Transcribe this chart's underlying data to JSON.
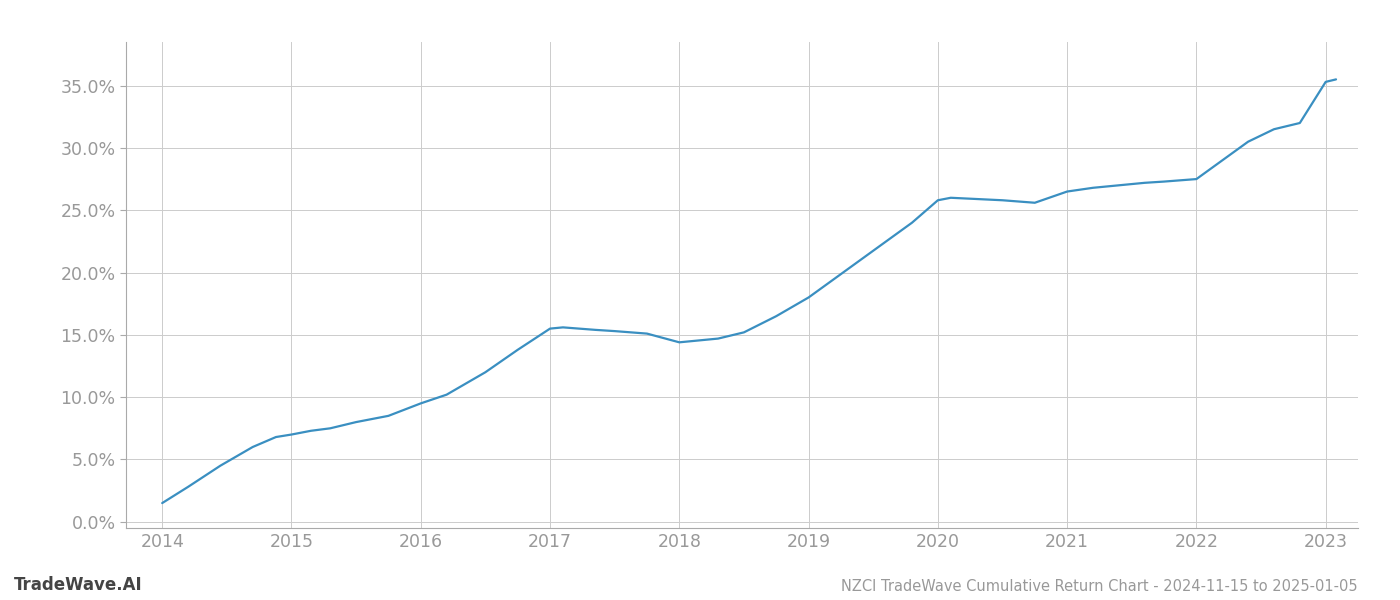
{
  "title": "NZCI TradeWave Cumulative Return Chart - 2024-11-15 to 2025-01-05",
  "watermark": "TradeWave.AI",
  "line_color": "#3a8fc1",
  "background_color": "#ffffff",
  "grid_color": "#cccccc",
  "x_values": [
    2014.0,
    2014.2,
    2014.45,
    2014.7,
    2014.88,
    2015.0,
    2015.15,
    2015.3,
    2015.5,
    2015.75,
    2016.0,
    2016.2,
    2016.5,
    2016.75,
    2017.0,
    2017.1,
    2017.35,
    2017.5,
    2017.75,
    2018.0,
    2018.1,
    2018.3,
    2018.5,
    2018.75,
    2019.0,
    2019.2,
    2019.4,
    2019.6,
    2019.8,
    2020.0,
    2020.1,
    2020.3,
    2020.5,
    2020.75,
    2021.0,
    2021.2,
    2021.4,
    2021.6,
    2021.75,
    2022.0,
    2022.2,
    2022.4,
    2022.6,
    2022.8,
    2023.0,
    2023.08
  ],
  "y_values": [
    1.5,
    2.8,
    4.5,
    6.0,
    6.8,
    7.0,
    7.3,
    7.5,
    8.0,
    8.5,
    9.5,
    10.2,
    12.0,
    13.8,
    15.5,
    15.6,
    15.4,
    15.3,
    15.1,
    14.4,
    14.5,
    14.7,
    15.2,
    16.5,
    18.0,
    19.5,
    21.0,
    22.5,
    24.0,
    25.8,
    26.0,
    25.9,
    25.8,
    25.6,
    26.5,
    26.8,
    27.0,
    27.2,
    27.3,
    27.5,
    29.0,
    30.5,
    31.5,
    32.0,
    35.3,
    35.5
  ],
  "xlim": [
    2013.72,
    2023.25
  ],
  "ylim": [
    -0.5,
    38.5
  ],
  "xticks": [
    2014,
    2015,
    2016,
    2017,
    2018,
    2019,
    2020,
    2021,
    2022,
    2023
  ],
  "yticks": [
    0.0,
    5.0,
    10.0,
    15.0,
    20.0,
    25.0,
    30.0,
    35.0
  ],
  "line_width": 1.6,
  "tick_label_color": "#999999",
  "title_color": "#999999",
  "watermark_color": "#444444",
  "spine_color": "#aaaaaa"
}
